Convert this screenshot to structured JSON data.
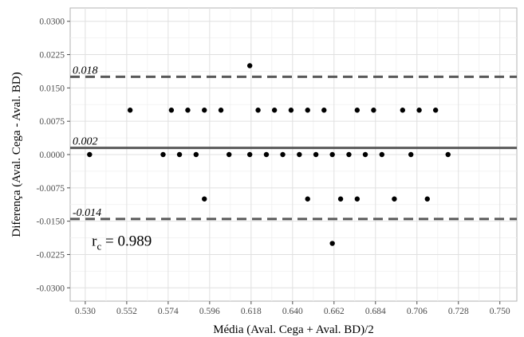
{
  "chart_data": {
    "type": "scatter",
    "xlabel": "Média (Aval. Cega + Aval. BD)/2",
    "ylabel": "Diferença (Aval. Cega - Aval. BD)",
    "xlim": [
      0.522,
      0.759
    ],
    "ylim": [
      -0.033,
      0.033
    ],
    "grid": true,
    "x_ticks": [
      "0.530",
      "0.552",
      "0.574",
      "0.596",
      "0.618",
      "0.640",
      "0.662",
      "0.684",
      "0.706",
      "0.728",
      "0.750"
    ],
    "y_ticks": [
      "0.0300",
      "0.0225",
      "0.0150",
      "0.0075",
      "0.0000",
      "-0.0075",
      "-0.0150",
      "-0.0225",
      "-0.0300"
    ],
    "reference_lines": [
      {
        "value": 0.0175,
        "label": "0.018",
        "style": "dashed",
        "color": "#595959"
      },
      {
        "value": 0.0015,
        "label": "0.002",
        "style": "solid",
        "color": "#595959"
      },
      {
        "value": -0.0145,
        "label": "-0.014",
        "style": "dashed",
        "color": "#595959"
      }
    ],
    "annotation": {
      "main": "r",
      "sub": "c",
      "rest": " = 0.989",
      "x": 0.5335,
      "y": -0.0205
    },
    "points": [
      {
        "x": 0.5323,
        "y": 0.0
      },
      {
        "x": 0.5538,
        "y": 0.01
      },
      {
        "x": 0.5713,
        "y": 0.0
      },
      {
        "x": 0.5757,
        "y": 0.01
      },
      {
        "x": 0.58,
        "y": 0.0
      },
      {
        "x": 0.5844,
        "y": 0.01
      },
      {
        "x": 0.5888,
        "y": 0.0
      },
      {
        "x": 0.5932,
        "y": 0.01
      },
      {
        "x": 0.5932,
        "y": -0.01
      },
      {
        "x": 0.602,
        "y": 0.01
      },
      {
        "x": 0.6063,
        "y": 0.0
      },
      {
        "x": 0.6173,
        "y": 0.0
      },
      {
        "x": 0.6173,
        "y": 0.02
      },
      {
        "x": 0.6217,
        "y": 0.01
      },
      {
        "x": 0.6261,
        "y": 0.0
      },
      {
        "x": 0.6304,
        "y": 0.01
      },
      {
        "x": 0.6348,
        "y": 0.0
      },
      {
        "x": 0.6392,
        "y": 0.01
      },
      {
        "x": 0.6436,
        "y": 0.0
      },
      {
        "x": 0.648,
        "y": 0.01
      },
      {
        "x": 0.648,
        "y": -0.01
      },
      {
        "x": 0.6524,
        "y": 0.0
      },
      {
        "x": 0.6567,
        "y": 0.01
      },
      {
        "x": 0.6611,
        "y": 0.0
      },
      {
        "x": 0.6611,
        "y": -0.02
      },
      {
        "x": 0.6655,
        "y": -0.01
      },
      {
        "x": 0.6699,
        "y": 0.0
      },
      {
        "x": 0.6743,
        "y": -0.01
      },
      {
        "x": 0.6743,
        "y": 0.01
      },
      {
        "x": 0.6786,
        "y": 0.0
      },
      {
        "x": 0.683,
        "y": 0.01
      },
      {
        "x": 0.6874,
        "y": 0.0
      },
      {
        "x": 0.694,
        "y": -0.01
      },
      {
        "x": 0.6984,
        "y": 0.01
      },
      {
        "x": 0.7028,
        "y": 0.0
      },
      {
        "x": 0.7072,
        "y": 0.01
      },
      {
        "x": 0.7115,
        "y": -0.01
      },
      {
        "x": 0.7159,
        "y": 0.01
      },
      {
        "x": 0.7225,
        "y": 0.0
      }
    ]
  }
}
